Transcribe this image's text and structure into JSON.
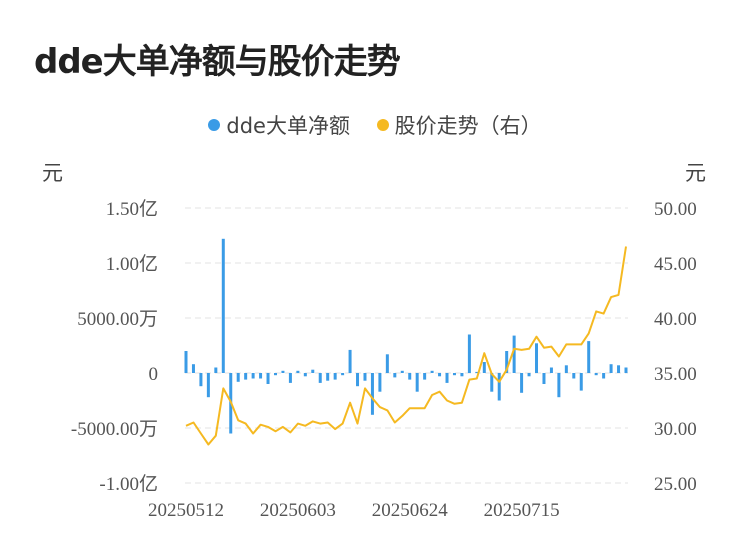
{
  "title": "dde大单净额与股价走势",
  "legend": {
    "bar_label": "dde大单净额",
    "line_label": "股价走势（右）"
  },
  "left_unit": "元",
  "right_unit": "元",
  "colors": {
    "bar": "#3A9BE6",
    "line": "#F5B921",
    "grid": "#E3E3E3",
    "tick": "#555555"
  },
  "chart_data": {
    "type": "bar+line",
    "x_tick_labels": [
      "20250512",
      "20250603",
      "20250624",
      "20250715"
    ],
    "left_axis": {
      "ticks": [
        "1.50亿",
        "1.00亿",
        "5000.00万",
        "0",
        "-5000.00万",
        "-1.00亿"
      ],
      "min": -100000000,
      "max": 150000000
    },
    "right_axis": {
      "ticks": [
        "50.00",
        "45.00",
        "40.00",
        "35.00",
        "30.00",
        "25.00"
      ],
      "min": 25,
      "max": 50
    },
    "grid": true,
    "legend_position": "top-center",
    "series": [
      {
        "name": "dde大单净额",
        "kind": "bar",
        "axis": "left",
        "values": [
          20000000,
          8000000,
          -12000000,
          -22000000,
          5000000,
          122000000,
          -55000000,
          -8000000,
          -6000000,
          -5000000,
          -5000000,
          -10000000,
          -2000000,
          2000000,
          -9000000,
          2000000,
          -3000000,
          3000000,
          -9000000,
          -7000000,
          -6000000,
          -2000000,
          21000000,
          -12000000,
          -7000000,
          -38000000,
          -17000000,
          17000000,
          -4000000,
          2000000,
          -6000000,
          -17000000,
          -6000000,
          2000000,
          -3000000,
          -9000000,
          -2000000,
          -3000000,
          35000000,
          1000000,
          10000000,
          -17000000,
          -25000000,
          20000000,
          34000000,
          -18000000,
          -3000000,
          27000000,
          -10000000,
          5000000,
          -22000000,
          7000000,
          -5000000,
          -16000000,
          29000000,
          -2000000,
          -5000000,
          8000000,
          7000000,
          5000000
        ]
      },
      {
        "name": "股价走势（右）",
        "kind": "line",
        "axis": "right",
        "values": [
          30.2,
          30.5,
          29.5,
          28.5,
          29.3,
          33.6,
          32.4,
          30.7,
          30.4,
          29.5,
          30.3,
          30.1,
          29.7,
          30.1,
          29.6,
          30.4,
          30.2,
          30.6,
          30.4,
          30.5,
          29.9,
          30.4,
          32.3,
          30.4,
          33.6,
          32.7,
          31.9,
          31.6,
          30.5,
          31.1,
          31.8,
          31.8,
          31.8,
          33.0,
          33.3,
          32.5,
          32.2,
          32.3,
          34.4,
          34.5,
          36.8,
          34.9,
          34.2,
          35.3,
          37.2,
          37.1,
          37.2,
          38.3,
          37.3,
          37.4,
          36.5,
          37.6,
          37.6,
          37.6,
          38.6,
          40.6,
          40.4,
          41.9,
          42.1,
          46.5
        ]
      }
    ]
  }
}
